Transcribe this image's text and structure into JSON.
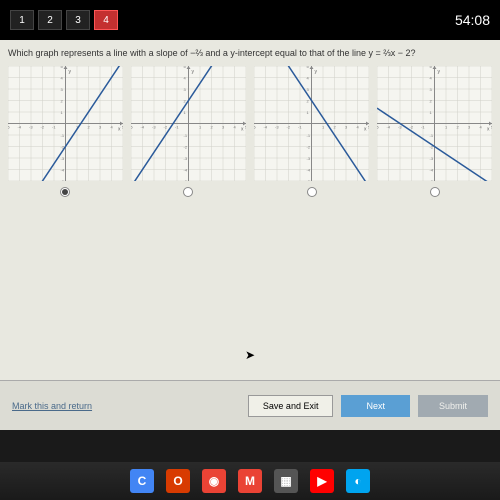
{
  "topbar": {
    "tabs": [
      "1",
      "2",
      "3",
      "4"
    ],
    "active_tab": 3,
    "timer": "54:08"
  },
  "question": "Which graph represents a line with a slope of −⅔ and a y-intercept equal to that of the line y = ⅔x − 2?",
  "graphs": [
    {
      "slope": 1.5,
      "yint": -2,
      "selected": true
    },
    {
      "slope": 1.5,
      "yint": 2,
      "selected": false
    },
    {
      "slope": -1.5,
      "yint": 2,
      "selected": false
    },
    {
      "slope": -0.667,
      "yint": -2,
      "selected": false
    }
  ],
  "grid": {
    "min": -5,
    "max": 5,
    "bg": "#f5f5f0",
    "grid_color": "#d0d0c8",
    "axis_color": "#888888",
    "line_color": "#2a5a9a",
    "ticks_neg": [
      "-5",
      "-4",
      "-3",
      "-2",
      "-1"
    ],
    "ticks_pos": [
      "1",
      "2",
      "3",
      "4",
      "5"
    ]
  },
  "bottom": {
    "mark": "Mark this and return",
    "save": "Save and Exit",
    "next": "Next",
    "submit": "Submit"
  },
  "dock": [
    {
      "name": "chrome-icon",
      "color": "#4285f4",
      "glyph": "C"
    },
    {
      "name": "office-icon",
      "color": "#d83b01",
      "glyph": "O"
    },
    {
      "name": "chrome2-icon",
      "color": "#ea4335",
      "glyph": "◉"
    },
    {
      "name": "gmail-icon",
      "color": "#ea4335",
      "glyph": "M"
    },
    {
      "name": "app-icon",
      "color": "#555555",
      "glyph": "▦"
    },
    {
      "name": "youtube-icon",
      "color": "#ff0000",
      "glyph": "▶"
    },
    {
      "name": "media-icon",
      "color": "#00a4ef",
      "glyph": "◐"
    }
  ]
}
